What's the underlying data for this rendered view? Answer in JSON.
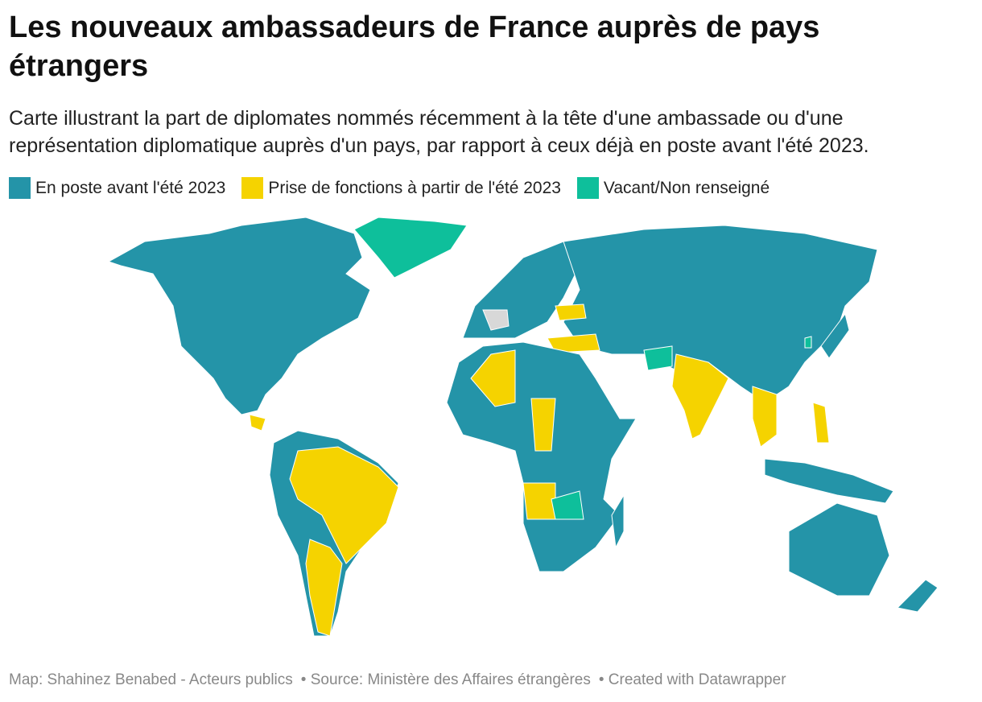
{
  "header": {
    "title": "Les nouveaux ambassadeurs de France auprès de pays étrangers",
    "subtitle": "Carte illustrant la part de diplomates nommés récemment à la tête d'une ambassade ou d'une représentation diplomatique auprès d'un pays, par rapport à ceux déjà en poste avant l'été 2023."
  },
  "legend": [
    {
      "label": "En poste avant l'été 2023",
      "color": "#2494a8"
    },
    {
      "label": "Prise de fonctions à partir de l'été 2023",
      "color": "#f5d300"
    },
    {
      "label": "Vacant/Non renseigné",
      "color": "#0ebf9b"
    }
  ],
  "footer": {
    "map": "Map: Shahinez Benabed - Acteurs publics",
    "source": "• Source: Ministère des Affaires étrangères",
    "credit": "• Created with Datawrapper"
  }
}
